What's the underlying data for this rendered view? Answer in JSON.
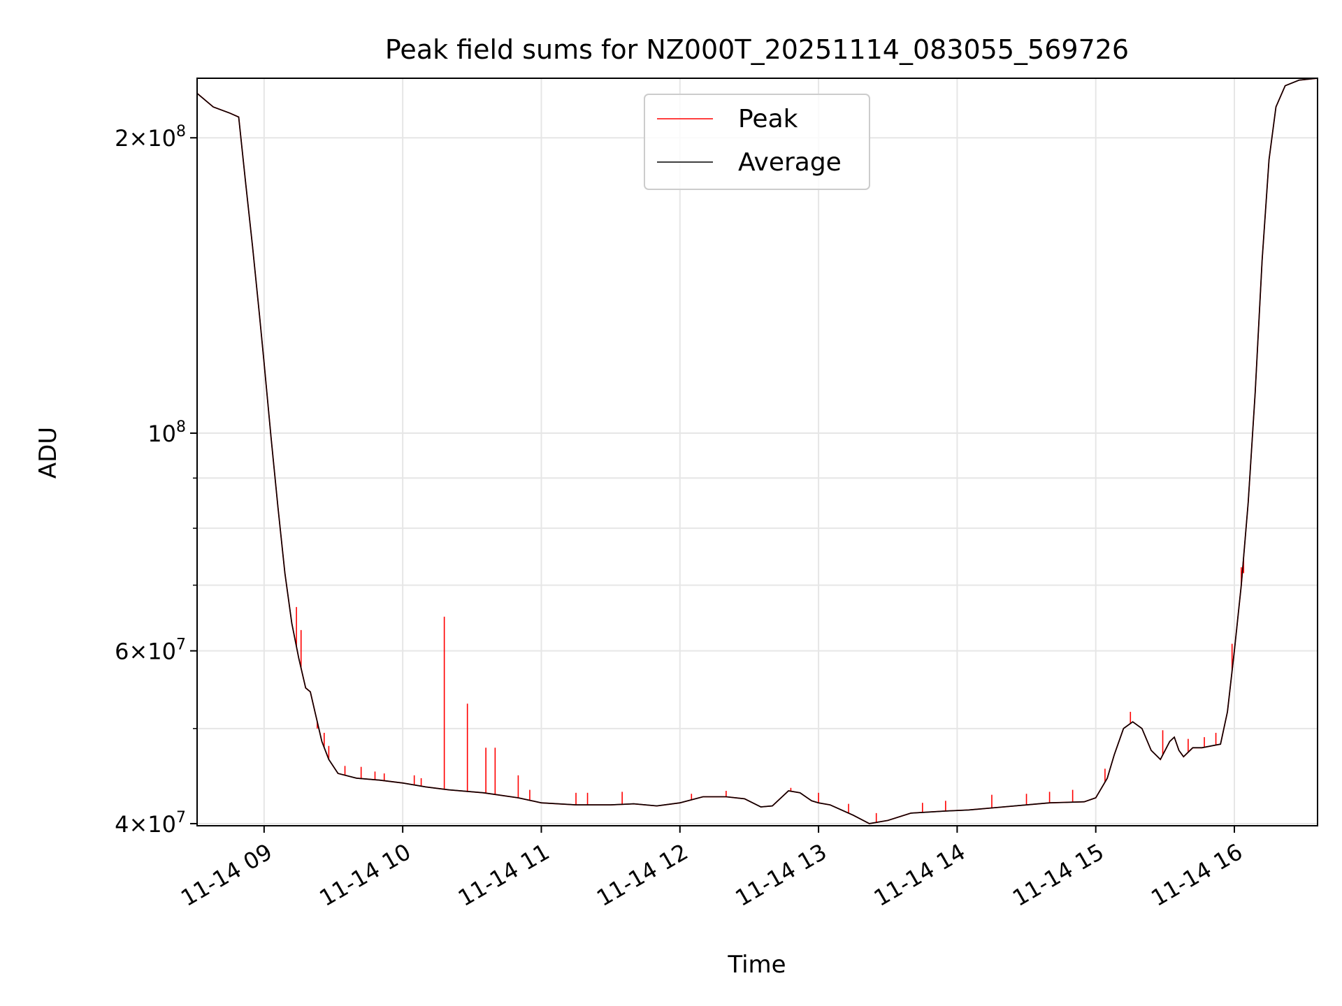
{
  "chart_data": {
    "type": "line",
    "title": "Peak field sums for NZ000T_20251114_083055_569726",
    "xlabel": "Time",
    "ylabel": "ADU",
    "x_unit": "2025-11-14 time of day (HH:MM)",
    "xlim": [
      "08:31",
      "16:36"
    ],
    "ylim": [
      39800000,
      230000000
    ],
    "y_scale": "log",
    "grid": true,
    "legend_position": "top-center",
    "x_ticks": [
      {
        "time": "09:00",
        "label": "11-14 09"
      },
      {
        "time": "10:00",
        "label": "11-14 10"
      },
      {
        "time": "11:00",
        "label": "11-14 11"
      },
      {
        "time": "12:00",
        "label": "11-14 12"
      },
      {
        "time": "13:00",
        "label": "11-14 13"
      },
      {
        "time": "14:00",
        "label": "11-14 14"
      },
      {
        "time": "15:00",
        "label": "11-14 15"
      },
      {
        "time": "16:00",
        "label": "11-14 16"
      }
    ],
    "y_major_ticks": [
      {
        "value": 40000000,
        "mantissa": "4",
        "exponent": "7"
      },
      {
        "value": 60000000,
        "mantissa": "6",
        "exponent": "7"
      },
      {
        "value": 100000000,
        "mantissa": "",
        "exponent": "8"
      },
      {
        "value": 200000000,
        "mantissa": "2",
        "exponent": "8"
      }
    ],
    "y_minor_gridlines": [
      50000000,
      70000000,
      80000000,
      90000000
    ],
    "series": [
      {
        "name": "Average",
        "color": "#000000",
        "points": [
          {
            "x": "08:31",
            "y": 222000000
          },
          {
            "x": "08:38",
            "y": 215000000
          },
          {
            "x": "08:45",
            "y": 212000000
          },
          {
            "x": "08:49",
            "y": 210000000
          },
          {
            "x": "08:52",
            "y": 180000000
          },
          {
            "x": "08:55",
            "y": 155000000
          },
          {
            "x": "08:58",
            "y": 132000000
          },
          {
            "x": "09:00",
            "y": 118000000
          },
          {
            "x": "09:03",
            "y": 99000000
          },
          {
            "x": "09:06",
            "y": 84000000
          },
          {
            "x": "09:09",
            "y": 72000000
          },
          {
            "x": "09:12",
            "y": 64000000
          },
          {
            "x": "09:15",
            "y": 59000000
          },
          {
            "x": "09:18",
            "y": 55000000
          },
          {
            "x": "09:20",
            "y": 54500000
          },
          {
            "x": "09:22",
            "y": 52000000
          },
          {
            "x": "09:25",
            "y": 48500000
          },
          {
            "x": "09:28",
            "y": 46500000
          },
          {
            "x": "09:32",
            "y": 45000000
          },
          {
            "x": "09:40",
            "y": 44500000
          },
          {
            "x": "09:50",
            "y": 44300000
          },
          {
            "x": "10:00",
            "y": 44000000
          },
          {
            "x": "10:10",
            "y": 43600000
          },
          {
            "x": "10:20",
            "y": 43300000
          },
          {
            "x": "10:35",
            "y": 43000000
          },
          {
            "x": "10:50",
            "y": 42500000
          },
          {
            "x": "11:00",
            "y": 42000000
          },
          {
            "x": "11:15",
            "y": 41800000
          },
          {
            "x": "11:30",
            "y": 41800000
          },
          {
            "x": "11:40",
            "y": 41900000
          },
          {
            "x": "11:50",
            "y": 41700000
          },
          {
            "x": "12:00",
            "y": 42000000
          },
          {
            "x": "12:10",
            "y": 42600000
          },
          {
            "x": "12:20",
            "y": 42600000
          },
          {
            "x": "12:28",
            "y": 42400000
          },
          {
            "x": "12:35",
            "y": 41600000
          },
          {
            "x": "12:40",
            "y": 41700000
          },
          {
            "x": "12:47",
            "y": 43200000
          },
          {
            "x": "12:52",
            "y": 43000000
          },
          {
            "x": "12:57",
            "y": 42200000
          },
          {
            "x": "13:00",
            "y": 42000000
          },
          {
            "x": "13:05",
            "y": 41800000
          },
          {
            "x": "13:15",
            "y": 40800000
          },
          {
            "x": "13:22",
            "y": 40000000
          },
          {
            "x": "13:30",
            "y": 40300000
          },
          {
            "x": "13:40",
            "y": 41000000
          },
          {
            "x": "13:55",
            "y": 41200000
          },
          {
            "x": "14:05",
            "y": 41300000
          },
          {
            "x": "14:15",
            "y": 41500000
          },
          {
            "x": "14:25",
            "y": 41700000
          },
          {
            "x": "14:40",
            "y": 42000000
          },
          {
            "x": "14:55",
            "y": 42100000
          },
          {
            "x": "15:00",
            "y": 42500000
          },
          {
            "x": "15:05",
            "y": 44500000
          },
          {
            "x": "15:08",
            "y": 47000000
          },
          {
            "x": "15:12",
            "y": 50000000
          },
          {
            "x": "15:16",
            "y": 50800000
          },
          {
            "x": "15:20",
            "y": 50000000
          },
          {
            "x": "15:24",
            "y": 47500000
          },
          {
            "x": "15:28",
            "y": 46500000
          },
          {
            "x": "15:32",
            "y": 48500000
          },
          {
            "x": "15:34",
            "y": 49000000
          },
          {
            "x": "15:36",
            "y": 47500000
          },
          {
            "x": "15:38",
            "y": 46800000
          },
          {
            "x": "15:42",
            "y": 47800000
          },
          {
            "x": "15:46",
            "y": 47800000
          },
          {
            "x": "15:50",
            "y": 48000000
          },
          {
            "x": "15:54",
            "y": 48200000
          },
          {
            "x": "15:57",
            "y": 52000000
          },
          {
            "x": "16:00",
            "y": 60000000
          },
          {
            "x": "16:03",
            "y": 70000000
          },
          {
            "x": "16:06",
            "y": 85000000
          },
          {
            "x": "16:09",
            "y": 110000000
          },
          {
            "x": "16:12",
            "y": 150000000
          },
          {
            "x": "16:15",
            "y": 190000000
          },
          {
            "x": "16:18",
            "y": 215000000
          },
          {
            "x": "16:22",
            "y": 226000000
          },
          {
            "x": "16:28",
            "y": 229000000
          },
          {
            "x": "16:36",
            "y": 230000000
          }
        ]
      },
      {
        "name": "Peak",
        "color": "#ff0000",
        "points": [
          {
            "x": "09:14",
            "y": 66500000
          },
          {
            "x": "09:16",
            "y": 63000000
          },
          {
            "x": "09:23",
            "y": 50000000
          },
          {
            "x": "09:26",
            "y": 49500000
          },
          {
            "x": "09:28",
            "y": 48000000
          },
          {
            "x": "09:35",
            "y": 45800000
          },
          {
            "x": "09:42",
            "y": 45700000
          },
          {
            "x": "09:48",
            "y": 45200000
          },
          {
            "x": "09:52",
            "y": 45000000
          },
          {
            "x": "10:05",
            "y": 44800000
          },
          {
            "x": "10:08",
            "y": 44500000
          },
          {
            "x": "10:18",
            "y": 65000000
          },
          {
            "x": "10:28",
            "y": 53000000
          },
          {
            "x": "10:36",
            "y": 47800000
          },
          {
            "x": "10:40",
            "y": 47800000
          },
          {
            "x": "10:50",
            "y": 44800000
          },
          {
            "x": "10:55",
            "y": 43300000
          },
          {
            "x": "11:15",
            "y": 43000000
          },
          {
            "x": "11:20",
            "y": 43000000
          },
          {
            "x": "11:35",
            "y": 43100000
          },
          {
            "x": "12:05",
            "y": 42900000
          },
          {
            "x": "12:20",
            "y": 43200000
          },
          {
            "x": "12:48",
            "y": 43500000
          },
          {
            "x": "13:00",
            "y": 43000000
          },
          {
            "x": "13:13",
            "y": 41900000
          },
          {
            "x": "13:25",
            "y": 41000000
          },
          {
            "x": "13:45",
            "y": 42000000
          },
          {
            "x": "13:55",
            "y": 42200000
          },
          {
            "x": "14:15",
            "y": 42800000
          },
          {
            "x": "14:30",
            "y": 42900000
          },
          {
            "x": "14:40",
            "y": 43100000
          },
          {
            "x": "14:50",
            "y": 43300000
          },
          {
            "x": "15:04",
            "y": 45500000
          },
          {
            "x": "15:15",
            "y": 52000000
          },
          {
            "x": "15:29",
            "y": 49800000
          },
          {
            "x": "15:40",
            "y": 48800000
          },
          {
            "x": "15:47",
            "y": 49000000
          },
          {
            "x": "15:52",
            "y": 49500000
          },
          {
            "x": "15:59",
            "y": 61000000
          },
          {
            "x": "16:01",
            "y": 63000000
          },
          {
            "x": "16:03",
            "y": 73000000
          },
          {
            "x": "16:04",
            "y": 72000000
          }
        ]
      }
    ]
  }
}
